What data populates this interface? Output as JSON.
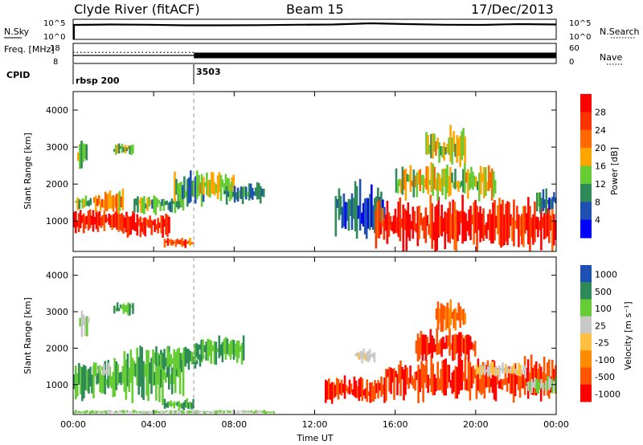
{
  "header": {
    "station": "Clyde River (fitACF)",
    "beam": "Beam 15",
    "date": "17/Dec/2013"
  },
  "colors": {
    "power_scale": [
      "#0000ff",
      "#1e50b4",
      "#2e8b57",
      "#66cc33",
      "#ffa500",
      "#ff6a00",
      "#ff3300",
      "#ff0000"
    ],
    "velocity_scale": [
      "#ff0000",
      "#ff5500",
      "#ff8c00",
      "#ffbf40",
      "#c8c8c8",
      "#66cc33",
      "#2e8b57",
      "#1e50b4"
    ]
  },
  "chart_data": [
    {
      "type": "line",
      "panel": "noise",
      "ylabel_left": "N.Sky",
      "ylabel_right": "N.Search",
      "left_ticks": [
        "10^5",
        "10^0"
      ],
      "right_ticks": [
        "10^5",
        "10^0"
      ],
      "x": [
        "00:00",
        "02:00",
        "04:00",
        "06:00",
        "08:00",
        "10:00",
        "12:00",
        "14:00",
        "15:00",
        "16:00",
        "18:00",
        "20:00",
        "22:00",
        "24:00"
      ],
      "series": [
        {
          "values": [
            0.72,
            0.74,
            0.73,
            0.7,
            0.7,
            0.71,
            0.73,
            0.74,
            0.8,
            0.76,
            0.73,
            0.72,
            0.76,
            0.74
          ]
        }
      ]
    },
    {
      "type": "line",
      "panel": "frequency",
      "ylabel_left": "Freq. [MHz]",
      "ylabel_right": "Nave",
      "left_ticks": [
        "18",
        "8"
      ],
      "right_ticks": [
        "60",
        "0"
      ],
      "ylim_left": [
        8,
        18
      ],
      "ylim_right": [
        0,
        60
      ],
      "x_hours": [
        0,
        6,
        6,
        24
      ],
      "freq_values": [
        12,
        12,
        12,
        12
      ],
      "nave_values": [
        33,
        33,
        18,
        18
      ]
    },
    {
      "type": "table",
      "panel": "cpid",
      "label": "CPID",
      "segments": [
        {
          "start_hour": 0,
          "name": "rbsp 200"
        },
        {
          "start_hour": 6,
          "name": "3503"
        }
      ]
    },
    {
      "type": "heatmap",
      "panel": "power",
      "ylabel": "Slant Range [km]",
      "xlim_hours": [
        0,
        24
      ],
      "ylim": [
        180,
        4500
      ],
      "yticks": [
        1000,
        2000,
        3000,
        4000
      ],
      "colorbar_label": "Power [dB]",
      "colorbar_ticks": [
        "28",
        "24",
        "20",
        "16",
        "12",
        "8",
        "4"
      ],
      "colorbar_range": [
        0,
        32
      ],
      "regions": [
        {
          "hours": [
            0.0,
            3.0
          ],
          "range": [
            700,
            1300
          ],
          "level": 28
        },
        {
          "hours": [
            0.1,
            0.9
          ],
          "range": [
            1300,
            1700
          ],
          "level": 12
        },
        {
          "hours": [
            0.2,
            0.7
          ],
          "range": [
            2300,
            3200
          ],
          "level": 12
        },
        {
          "hours": [
            1.0,
            2.5
          ],
          "range": [
            1200,
            1800
          ],
          "level": 20
        },
        {
          "hours": [
            2.5,
            4.8
          ],
          "range": [
            600,
            1200
          ],
          "level": 28
        },
        {
          "hours": [
            3.0,
            5.5
          ],
          "range": [
            1200,
            1700
          ],
          "level": 12
        },
        {
          "hours": [
            4.5,
            6.0
          ],
          "range": [
            300,
            550
          ],
          "level": 24
        },
        {
          "hours": [
            5.0,
            6.5
          ],
          "range": [
            1400,
            2300
          ],
          "level": 12
        },
        {
          "hours": [
            6.2,
            8.0
          ],
          "range": [
            1600,
            2300
          ],
          "level": 16
        },
        {
          "hours": [
            7.5,
            9.5
          ],
          "range": [
            1500,
            2000
          ],
          "level": 8
        },
        {
          "hours": [
            2.0,
            3.0
          ],
          "range": [
            2800,
            3100
          ],
          "level": 12
        },
        {
          "hours": [
            13.0,
            15.5
          ],
          "range": [
            500,
            2000
          ],
          "level": 8
        },
        {
          "hours": [
            15.0,
            24.0
          ],
          "range": [
            250,
            1600
          ],
          "level": 28
        },
        {
          "hours": [
            16.0,
            21.0
          ],
          "range": [
            1600,
            2500
          ],
          "level": 16
        },
        {
          "hours": [
            17.5,
            19.5
          ],
          "range": [
            2500,
            3500
          ],
          "level": 16
        },
        {
          "hours": [
            23.0,
            24.0
          ],
          "range": [
            1200,
            1900
          ],
          "level": 8
        }
      ]
    },
    {
      "type": "heatmap",
      "panel": "velocity",
      "ylabel": "Slant Range [km]",
      "xlabel": "Time UT",
      "xticks": [
        "00:00",
        "04:00",
        "08:00",
        "12:00",
        "16:00",
        "20:00",
        "00:00"
      ],
      "xlim_hours": [
        0,
        24
      ],
      "ylim": [
        180,
        4500
      ],
      "yticks": [
        1000,
        2000,
        3000,
        4000
      ],
      "colorbar_label": "Velocity [m s⁻¹]",
      "colorbar_ticks": [
        "1000",
        "500",
        "100",
        "25",
        "-25",
        "-100",
        "-500",
        "-1000"
      ],
      "regions": [
        {
          "hours": [
            0.0,
            2.5
          ],
          "range": [
            600,
            1700
          ],
          "level": 500
        },
        {
          "hours": [
            1.0,
            1.8
          ],
          "range": [
            1200,
            1600
          ],
          "level": 100
        },
        {
          "hours": [
            2.5,
            5.5
          ],
          "range": [
            600,
            2000
          ],
          "level": 500
        },
        {
          "hours": [
            4.0,
            6.5
          ],
          "range": [
            1400,
            2000
          ],
          "level": 500
        },
        {
          "hours": [
            4.5,
            6.0
          ],
          "range": [
            300,
            600
          ],
          "level": 500
        },
        {
          "hours": [
            6.0,
            8.5
          ],
          "range": [
            1600,
            2300
          ],
          "level": 500
        },
        {
          "hours": [
            0.3,
            0.8
          ],
          "range": [
            2300,
            3100
          ],
          "level": 100
        },
        {
          "hours": [
            2.0,
            3.0
          ],
          "range": [
            2900,
            3300
          ],
          "level": 500
        },
        {
          "hours": [
            12.5,
            15.5
          ],
          "range": [
            500,
            1200
          ],
          "level": -500
        },
        {
          "hours": [
            14.0,
            15.0
          ],
          "range": [
            1600,
            2000
          ],
          "level": 25
        },
        {
          "hours": [
            15.5,
            24.0
          ],
          "range": [
            600,
            1700
          ],
          "level": -500
        },
        {
          "hours": [
            17.0,
            20.0
          ],
          "range": [
            1700,
            2500
          ],
          "level": -500
        },
        {
          "hours": [
            18.0,
            19.5
          ],
          "range": [
            2500,
            3300
          ],
          "level": -100
        },
        {
          "hours": [
            20.0,
            22.5
          ],
          "range": [
            1200,
            1600
          ],
          "level": 25
        },
        {
          "hours": [
            22.5,
            24.0
          ],
          "range": [
            800,
            1200
          ],
          "level": 100
        },
        {
          "hours": [
            0.0,
            10.0
          ],
          "range": [
            200,
            300
          ],
          "level": 100
        }
      ]
    }
  ]
}
